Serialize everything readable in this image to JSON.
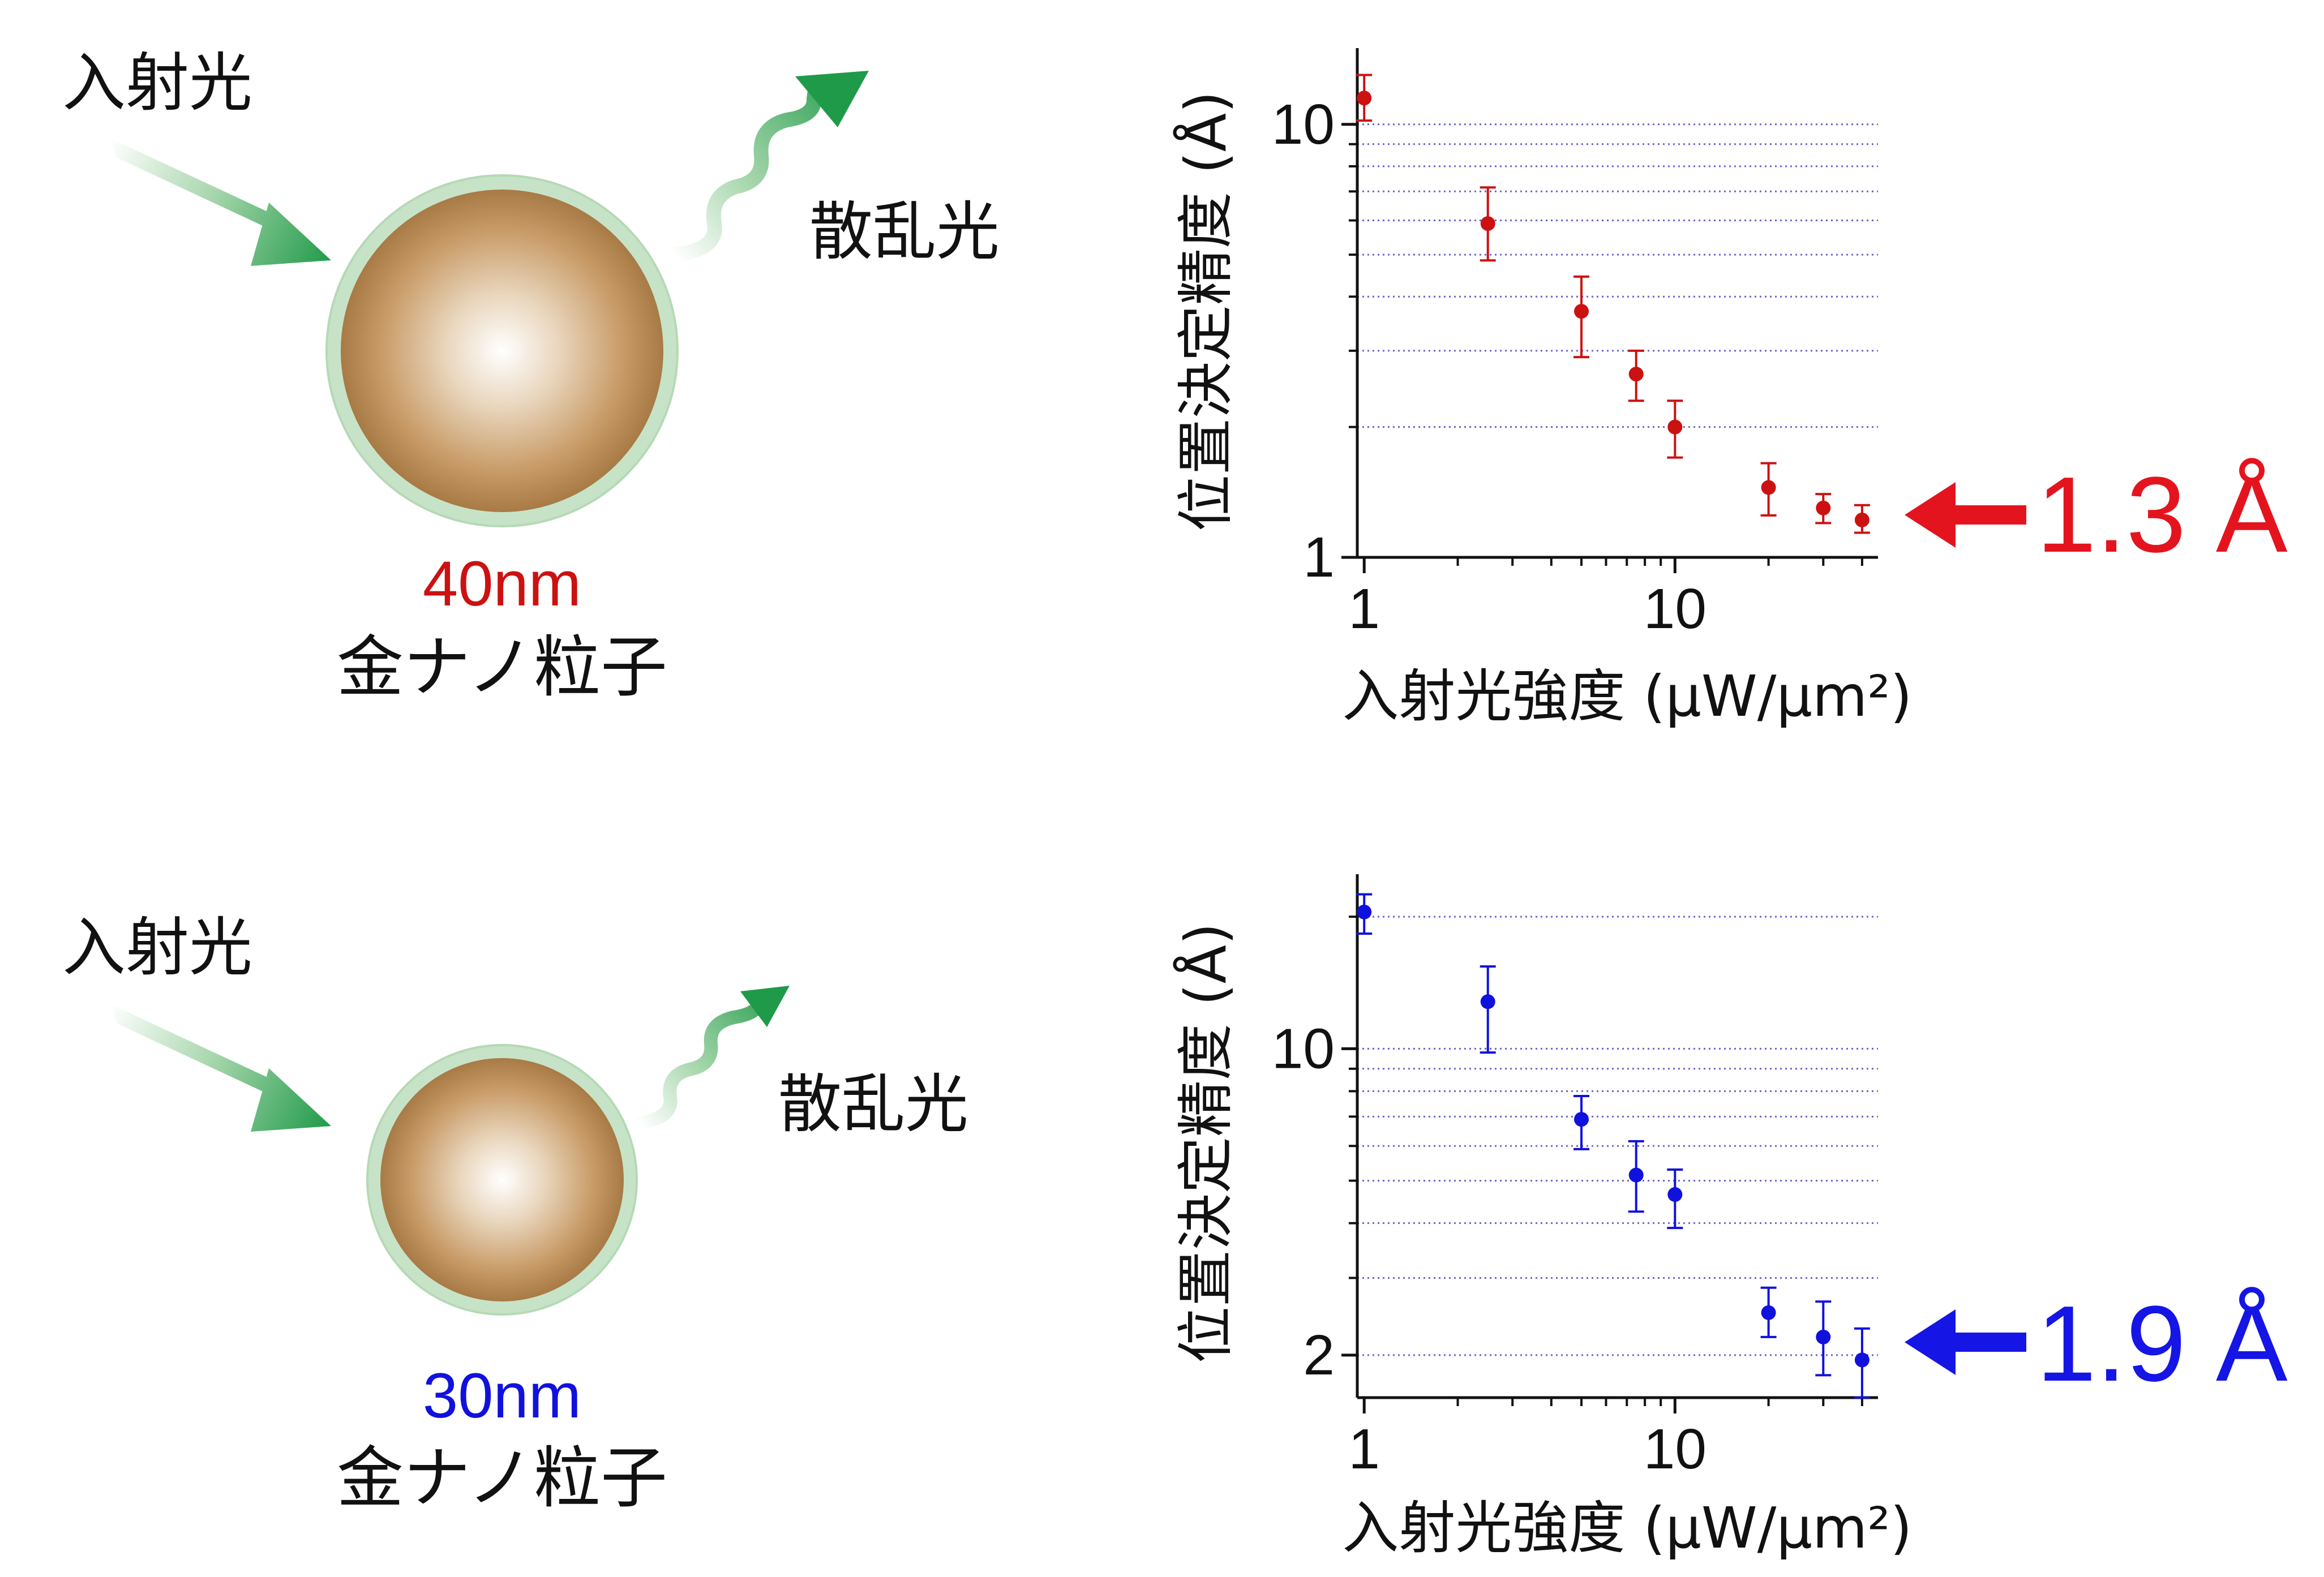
{
  "colors": {
    "top_series": "#cc1111",
    "bottom_series": "#1111dd",
    "top_callout": "#e4141e",
    "bottom_callout": "#1515e6",
    "gridline": "#6666cc",
    "particle_gold": "#b8874f",
    "particle_shell": "#c7e3c7",
    "light_green": "#18a04a"
  },
  "icons": [
    "incident-arrow-icon",
    "scattered-wave-icon",
    "gold-nanoparticle-icon",
    "callout-arrow-icon"
  ],
  "panels": [
    {
      "incident_label": "入射光",
      "scattered_label": "散乱光",
      "size_label": "40nm",
      "particle_label": "金ナノ粒子"
    },
    {
      "incident_label": "入射光",
      "scattered_label": "散乱光",
      "size_label": "30nm",
      "particle_label": "金ナノ粒子"
    }
  ],
  "chart_data": [
    {
      "type": "scatter",
      "xlabel": "入射光強度 (µW/µm²)",
      "ylabel": "位置決定精度 (Å)",
      "x_scale": "log",
      "y_scale": "log",
      "xlim": [
        0.95,
        45
      ],
      "ylim": [
        1,
        15
      ],
      "x_ticks": [
        {
          "value": 1,
          "label": "1"
        },
        {
          "value": 10,
          "label": "10"
        }
      ],
      "y_ticks": [
        {
          "value": 1,
          "label": "1"
        },
        {
          "value": 10,
          "label": "10"
        }
      ],
      "y_minor_ticks": [
        2,
        3,
        4,
        5,
        6,
        7,
        8,
        9
      ],
      "gridlines_y": [
        2,
        3,
        4,
        5,
        6,
        7,
        8,
        9,
        10
      ],
      "series": [
        {
          "x": [
            1,
            2.5,
            5,
            7.5,
            10,
            20,
            30,
            40
          ],
          "y": [
            11.5,
            5.9,
            3.7,
            2.65,
            2.0,
            1.45,
            1.3,
            1.22
          ],
          "err_low": [
            1.3,
            1.05,
            0.8,
            0.35,
            0.3,
            0.2,
            0.1,
            0.08
          ],
          "err_high": [
            1.5,
            1.25,
            0.75,
            0.35,
            0.3,
            0.2,
            0.1,
            0.1
          ]
        }
      ],
      "annotation": "1.3 Å"
    },
    {
      "type": "scatter",
      "xlabel": "入射光強度 (µW/µm²)",
      "ylabel": "位置決定精度 (Å)",
      "x_scale": "log",
      "y_scale": "log",
      "xlim": [
        0.95,
        45
      ],
      "ylim": [
        1.6,
        25
      ],
      "x_ticks": [
        {
          "value": 1,
          "label": "1"
        },
        {
          "value": 10,
          "label": "10"
        }
      ],
      "y_ticks": [
        {
          "value": 2,
          "label": "2"
        },
        {
          "value": 10,
          "label": "10"
        }
      ],
      "y_minor_ticks": [
        3,
        4,
        5,
        6,
        7,
        8,
        9,
        20
      ],
      "gridlines_y": [
        2,
        3,
        4,
        5,
        6,
        7,
        8,
        9,
        10,
        20
      ],
      "series": [
        {
          "x": [
            1,
            2.5,
            5,
            7.5,
            10,
            20,
            30,
            40
          ],
          "y": [
            20.5,
            12.8,
            6.9,
            5.15,
            4.65,
            2.5,
            2.2,
            1.95
          ],
          "err_low": [
            2.2,
            3.0,
            1.0,
            0.9,
            0.75,
            0.3,
            0.4,
            0.35
          ],
          "err_high": [
            2.0,
            2.6,
            0.9,
            1.0,
            0.65,
            0.35,
            0.45,
            0.35
          ]
        }
      ],
      "annotation": "1.9 Å"
    }
  ]
}
